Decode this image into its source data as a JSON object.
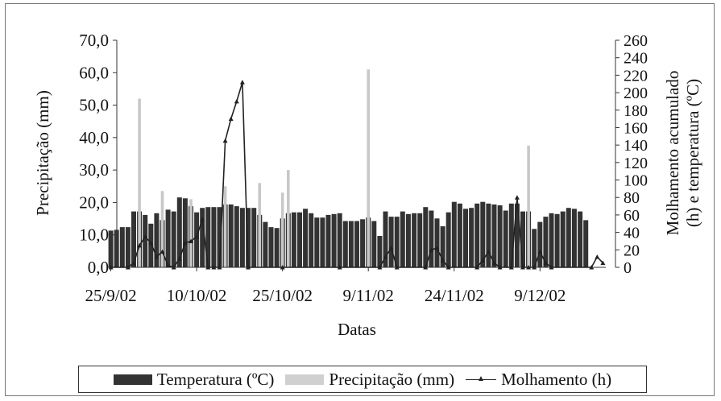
{
  "chart_data": {
    "type": "bar",
    "xlabel": "Datas",
    "ylabel_left": "Precipitação (mm)",
    "ylabel_right": "Molhamento acumulado (h) e temperatura (ºC)",
    "ylim_left": [
      0,
      70
    ],
    "ylim_right": [
      0,
      260
    ],
    "left_ticks": [
      "0,0",
      "10,0",
      "20,0",
      "30,0",
      "40,0",
      "50,0",
      "60,0",
      "70,0"
    ],
    "right_ticks": [
      "0",
      "20",
      "40",
      "60",
      "80",
      "100",
      "120",
      "140",
      "160",
      "180",
      "200",
      "220",
      "240",
      "260"
    ],
    "x_tick_labels": [
      {
        "day": 0,
        "label": "25/9/02"
      },
      {
        "day": 15,
        "label": "10/10/02"
      },
      {
        "day": 30,
        "label": "25/10/02"
      },
      {
        "day": 45,
        "label": "9/11/02"
      },
      {
        "day": 60,
        "label": "24/11/02"
      },
      {
        "day": 75,
        "label": "9/12/02"
      }
    ],
    "day_range": [
      0,
      86
    ],
    "legend_placement": "bottom",
    "series": [
      {
        "name": "Temperatura  (ºC)",
        "axis": "right",
        "color": "#333333",
        "values": [
          42,
          43,
          46,
          46,
          64,
          64,
          60,
          50,
          62,
          54,
          66,
          64,
          80,
          79,
          70,
          63,
          68,
          69,
          69,
          69,
          72,
          72,
          70,
          68,
          68,
          68,
          60,
          52,
          46,
          45,
          56,
          62,
          63,
          63,
          67,
          62,
          57,
          57,
          60,
          61,
          62,
          53,
          53,
          53,
          55,
          57,
          53,
          36,
          64,
          58,
          58,
          64,
          61,
          62,
          62,
          69,
          65,
          56,
          47,
          63,
          75,
          73,
          67,
          68,
          73,
          75,
          73,
          72,
          71,
          65,
          73,
          73,
          64,
          64,
          44,
          52,
          58,
          62,
          61,
          64,
          68,
          67,
          64,
          54
        ]
      },
      {
        "name": "Precipitação (mm)",
        "axis": "left",
        "color": "#c8c8c8",
        "values": [
          0,
          0,
          0,
          0,
          0,
          52,
          0,
          0,
          0,
          23.5,
          0,
          0,
          0,
          0,
          21,
          0,
          0,
          0,
          0,
          0,
          25,
          0,
          0,
          0,
          0,
          0,
          26,
          0,
          0,
          0,
          23,
          30,
          0,
          0,
          0,
          0,
          0,
          0,
          0,
          0,
          0,
          0,
          0,
          0,
          0,
          61,
          0,
          0,
          0,
          0,
          0,
          0,
          0,
          0,
          0,
          0,
          0,
          0,
          0,
          0,
          0,
          0,
          0,
          0,
          0,
          0,
          0,
          0,
          0,
          0,
          0,
          0,
          0,
          37.5,
          0,
          0,
          0,
          0,
          0,
          0,
          0,
          0,
          0,
          0
        ]
      },
      {
        "name": "Molhamento (h)",
        "axis": "right",
        "color": "#222222",
        "points": [
          [
            0,
            0
          ],
          [
            3,
            0
          ],
          [
            4,
            5
          ],
          [
            5,
            25
          ],
          [
            6,
            35
          ],
          [
            7,
            28
          ],
          [
            8,
            12
          ],
          [
            9,
            18
          ],
          [
            10,
            2
          ],
          [
            11,
            0
          ],
          [
            12,
            10
          ],
          [
            13,
            28
          ],
          [
            14,
            30
          ],
          [
            15,
            35
          ],
          [
            16,
            55
          ],
          [
            17,
            0
          ],
          [
            18,
            0
          ],
          [
            19,
            0
          ],
          [
            20,
            145
          ],
          [
            21,
            170
          ],
          [
            22,
            190
          ],
          [
            23,
            212
          ],
          [
            24,
            0
          ],
          [
            30,
            0
          ],
          [
            40,
            0
          ],
          [
            47,
            0
          ],
          [
            48,
            12
          ],
          [
            49,
            22
          ],
          [
            50,
            0
          ],
          [
            55,
            0
          ],
          [
            56,
            20
          ],
          [
            57,
            22
          ],
          [
            58,
            8
          ],
          [
            59,
            0
          ],
          [
            64,
            0
          ],
          [
            65,
            8
          ],
          [
            66,
            18
          ],
          [
            67,
            5
          ],
          [
            68,
            0
          ],
          [
            70,
            0
          ],
          [
            71,
            80
          ],
          [
            72,
            0
          ],
          [
            73,
            0
          ],
          [
            74,
            0
          ],
          [
            75,
            18
          ],
          [
            76,
            5
          ],
          [
            77,
            0
          ],
          [
            84,
            0
          ],
          [
            85,
            12
          ],
          [
            86,
            5
          ]
        ]
      }
    ]
  },
  "legend": {
    "temperature": "Temperatura  (ºC)",
    "precipitation": "Precipitação (mm)",
    "wetness": "Molhamento (h)"
  }
}
